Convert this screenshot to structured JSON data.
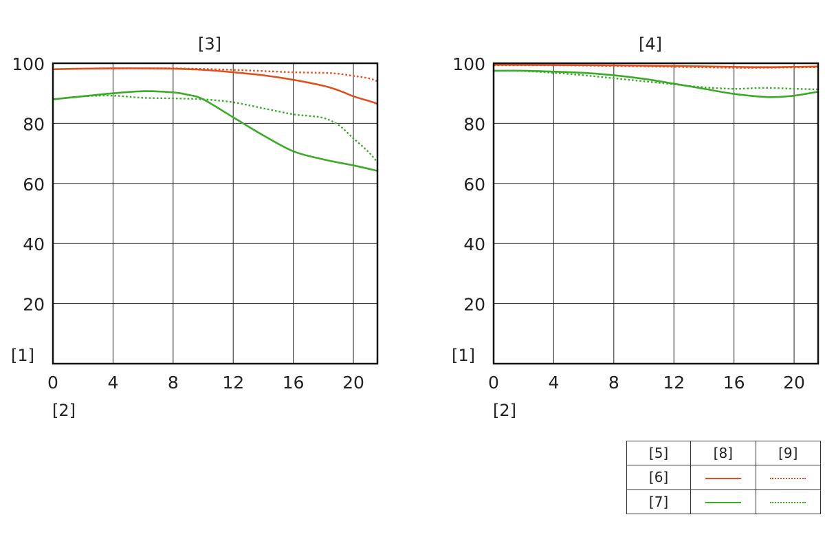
{
  "chart_data": [
    {
      "type": "line",
      "title": "[3]",
      "ylabel": "[1]",
      "xlabel": "[2]",
      "xlim": [
        0,
        21.6
      ],
      "ylim": [
        0,
        100
      ],
      "xticks": [
        0,
        4,
        8,
        12,
        16,
        20
      ],
      "yticks": [
        20,
        40,
        60,
        80,
        100
      ],
      "grid": true,
      "series": [
        {
          "name": "[6] [8]",
          "color": "#e0501e",
          "dash": "solid",
          "x": [
            0,
            2,
            4,
            6,
            8,
            10,
            12,
            14,
            16,
            18,
            19,
            20,
            21,
            21.6
          ],
          "y": [
            98,
            98.2,
            98.3,
            98.3,
            98.2,
            97.8,
            97,
            96,
            94.5,
            92.5,
            91,
            89,
            87.5,
            86.5
          ]
        },
        {
          "name": "[6] [9]",
          "color": "#e0501e",
          "dash": "dotted",
          "x": [
            0,
            2,
            4,
            6,
            8,
            10,
            12,
            14,
            16,
            18,
            19,
            20,
            21,
            21.6
          ],
          "y": [
            98,
            98.2,
            98.3,
            98.3,
            98.3,
            98.1,
            97.8,
            97.4,
            97,
            96.8,
            96.5,
            95.8,
            95,
            94
          ]
        },
        {
          "name": "[7] [8]",
          "color": "#3aaa28",
          "dash": "solid",
          "x": [
            0,
            2,
            4,
            6,
            8,
            9,
            10,
            12,
            14,
            16,
            18,
            20,
            21.6
          ],
          "y": [
            88,
            89,
            90,
            90.7,
            90.3,
            89.5,
            88,
            82,
            76,
            70.7,
            68,
            66,
            64.2
          ]
        },
        {
          "name": "[7] [9]",
          "color": "#3aaa28",
          "dash": "dotted",
          "x": [
            0,
            2,
            4,
            6,
            8,
            10,
            12,
            14,
            16,
            17,
            18,
            19,
            20,
            21,
            21.6
          ],
          "y": [
            88,
            89,
            89.2,
            88.5,
            88.3,
            88,
            87,
            85,
            83,
            82.5,
            81.8,
            79.5,
            75,
            70.5,
            67
          ]
        }
      ]
    },
    {
      "type": "line",
      "title": "[4]",
      "ylabel": "[1]",
      "xlabel": "[2]",
      "xlim": [
        0,
        21.6
      ],
      "ylim": [
        0,
        100
      ],
      "xticks": [
        0,
        4,
        8,
        12,
        16,
        20
      ],
      "yticks": [
        20,
        40,
        60,
        80,
        100
      ],
      "grid": true,
      "series": [
        {
          "name": "[6] [8]",
          "color": "#e0501e",
          "dash": "solid",
          "x": [
            0,
            4,
            8,
            12,
            16,
            18,
            20,
            21.6
          ],
          "y": [
            99.5,
            99.4,
            99.3,
            99.1,
            98.8,
            98.7,
            98.8,
            98.9
          ]
        },
        {
          "name": "[6] [9]",
          "color": "#e0501e",
          "dash": "dotted",
          "x": [
            0,
            4,
            8,
            12,
            16,
            18,
            20,
            21.6
          ],
          "y": [
            99.3,
            99.3,
            99.1,
            98.8,
            98.5,
            98.5,
            98.6,
            98.7
          ]
        },
        {
          "name": "[7] [8]",
          "color": "#3aaa28",
          "dash": "solid",
          "x": [
            0,
            2,
            4,
            6,
            8,
            10,
            12,
            14,
            16,
            18,
            19,
            20,
            21,
            21.6
          ],
          "y": [
            97.5,
            97.5,
            97.2,
            96.8,
            96,
            94.8,
            93.2,
            91.5,
            89.8,
            88.8,
            88.8,
            89.2,
            90,
            90.5
          ]
        },
        {
          "name": "[7] [9]",
          "color": "#3aaa28",
          "dash": "dotted",
          "x": [
            0,
            2,
            4,
            6,
            8,
            10,
            12,
            14,
            16,
            18,
            20,
            21.6
          ],
          "y": [
            97.5,
            97.4,
            96.8,
            96,
            95,
            94,
            93,
            92,
            91.5,
            91.8,
            91.5,
            91.3
          ]
        }
      ]
    }
  ],
  "legend": {
    "header": [
      "[5]",
      "[8]",
      "[9]"
    ],
    "rows": [
      {
        "label": "[6]",
        "color": "#e0501e"
      },
      {
        "label": "[7]",
        "color": "#3aaa28"
      }
    ]
  }
}
